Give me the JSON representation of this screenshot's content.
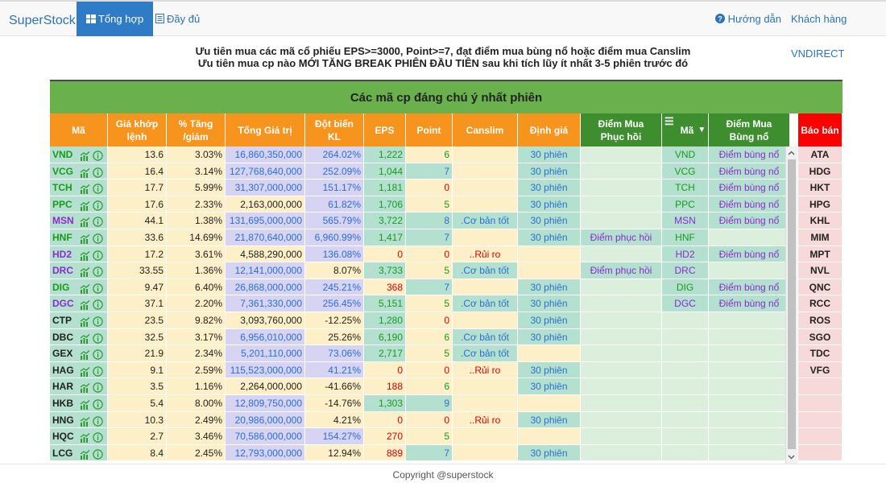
{
  "nav": {
    "brand": "SuperStock",
    "tab_summary": "Tổng hợp",
    "tab_full": "Đầy đủ",
    "help": "Hướng dẫn",
    "customer": "Khách hàng VNDIRECT"
  },
  "headline": {
    "line1": "Ưu tiên mua các mã cổ phiếu EPS>=3000, Point>=7, đạt điểm mua bùng nổ hoặc điểm mua Canslim",
    "line2": "Ưu tiên mua cp nào MỚI TĂNG BREAK PHIÊN ĐẦU TIÊN sau khi tích lũy ít nhất 3-5 phiên trước đó"
  },
  "board": {
    "title": "Các mã cp đáng chú ý nhất phiên",
    "headers": {
      "ma": "Mã",
      "gia_khop_1": "Giá khớp",
      "gia_khop_2": "lệnh",
      "tang_1": "% Tăng",
      "tang_2": "/giảm",
      "tong_gt": "Tổng Giá trị",
      "dot_bien_1": "Đột biến",
      "dot_bien_2": "KL",
      "eps": "EPS",
      "point": "Point",
      "canslim": "Canslim",
      "dinh_gia": "Định giá",
      "diem_mua_ph_1": "Điểm Mua",
      "diem_mua_ph_2": "Phục hồi",
      "ma2": "Mã",
      "menu_glyph": "☰",
      "sort_glyph": "▼",
      "bung_no_1": "Điểm Mua",
      "bung_no_2": "Bùng nổ",
      "bao_ban": "Báo bán"
    },
    "rows": [
      {
        "ma": "VND",
        "gia": "13.6",
        "tang": "3.03%",
        "tgt": "16,860,350,000",
        "dbkl": "264.02%",
        "eps": "1,222",
        "point": "6",
        "canslim": "",
        "dinhgia": "30 phiên",
        "ph": "",
        "ma2": "VND",
        "bungno": "Điểm bùng nổ",
        "baoban": "ATA"
      },
      {
        "ma": "VCG",
        "gia": "16.4",
        "tang": "3.14%",
        "tgt": "127,768,640,000",
        "dbkl": "252.09%",
        "eps": "1,044",
        "point": "7",
        "canslim": "",
        "dinhgia": "30 phiên",
        "ph": "",
        "ma2": "VCG",
        "bungno": "Điểm bùng nổ",
        "baoban": "HDG"
      },
      {
        "ma": "TCH",
        "gia": "17.7",
        "tang": "5.99%",
        "tgt": "31,307,000,000",
        "dbkl": "151.17%",
        "eps": "1,181",
        "point": "0",
        "canslim": "",
        "dinhgia": "30 phiên",
        "ph": "",
        "ma2": "TCH",
        "bungno": "Điểm bùng nổ",
        "baoban": "HKT"
      },
      {
        "ma": "PPC",
        "gia": "17.6",
        "tang": "2.33%",
        "tgt": "2,163,000,000",
        "dbkl": "61.82%",
        "eps": "1,706",
        "point": "5",
        "canslim": "",
        "dinhgia": "30 phiên",
        "ph": "",
        "ma2": "PPC",
        "bungno": "Điểm bùng nổ",
        "baoban": "HPG"
      },
      {
        "ma": "MSN",
        "gia": "44.1",
        "tang": "1.38%",
        "tgt": "131,695,000,000",
        "dbkl": "565.79%",
        "eps": "3,722",
        "point": "8",
        "canslim": ".Cơ bản tốt",
        "dinhgia": "30 phiên",
        "ph": "",
        "ma2": "MSN",
        "bungno": "Điểm bùng nổ",
        "baoban": "KHL"
      },
      {
        "ma": "HNF",
        "gia": "33.6",
        "tang": "14.69%",
        "tgt": "21,870,640,000",
        "dbkl": "6,960.99%",
        "eps": "1,417",
        "point": "7",
        "canslim": "",
        "dinhgia": "30 phiên",
        "ph": "Điểm phục hồi",
        "ma2": "HNF",
        "bungno": "",
        "baoban": "MIM"
      },
      {
        "ma": "HD2",
        "gia": "17.2",
        "tang": "3.61%",
        "tgt": "4,588,290,000",
        "dbkl": "136.08%",
        "eps": "0",
        "point": "0",
        "canslim": "..Rủi ro",
        "dinhgia": "",
        "ph": "",
        "ma2": "HD2",
        "bungno": "Điểm bùng nổ",
        "baoban": "MPT"
      },
      {
        "ma": "DRC",
        "gia": "33.55",
        "tang": "1.36%",
        "tgt": "12,141,000,000",
        "dbkl": "8.07%",
        "eps": "3,733",
        "point": "5",
        "canslim": ".Cơ bản tốt",
        "dinhgia": "",
        "ph": "Điểm phục hồi",
        "ma2": "DRC",
        "bungno": "",
        "baoban": "NVL"
      },
      {
        "ma": "DIG",
        "gia": "9.47",
        "tang": "6.40%",
        "tgt": "26,868,000,000",
        "dbkl": "245.21%",
        "eps": "368",
        "point": "7",
        "canslim": "",
        "dinhgia": "30 phiên",
        "ph": "",
        "ma2": "DIG",
        "bungno": "Điểm bùng nổ",
        "baoban": "QNC"
      },
      {
        "ma": "DGC",
        "gia": "37.1",
        "tang": "2.20%",
        "tgt": "7,361,330,000",
        "dbkl": "256.45%",
        "eps": "5,151",
        "point": "5",
        "canslim": ".Cơ bản tốt",
        "dinhgia": "30 phiên",
        "ph": "",
        "ma2": "DGC",
        "bungno": "Điểm bùng nổ",
        "baoban": "RCC"
      },
      {
        "ma": "CTP",
        "gia": "23.5",
        "tang": "9.82%",
        "tgt": "3,093,760,000",
        "dbkl": "-12.25%",
        "eps": "1,280",
        "point": "0",
        "canslim": "",
        "dinhgia": "30 phiên",
        "ph": "",
        "ma2": "",
        "bungno": "",
        "baoban": "ROS"
      },
      {
        "ma": "DBC",
        "gia": "32.5",
        "tang": "3.17%",
        "tgt": "6,956,010,000",
        "dbkl": "25.26%",
        "eps": "6,190",
        "point": "6",
        "canslim": ".Cơ bản tốt",
        "dinhgia": "30 phiên",
        "ph": "",
        "ma2": "",
        "bungno": "",
        "baoban": "SGO"
      },
      {
        "ma": "GEX",
        "gia": "21.9",
        "tang": "2.34%",
        "tgt": "5,201,110,000",
        "dbkl": "73.06%",
        "eps": "2,717",
        "point": "5",
        "canslim": ".Cơ bản tốt",
        "dinhgia": "",
        "ph": "",
        "ma2": "",
        "bungno": "",
        "baoban": "TDC"
      },
      {
        "ma": "HAG",
        "gia": "9.1",
        "tang": "2.59%",
        "tgt": "115,523,000,000",
        "dbkl": "41.21%",
        "eps": "0",
        "point": "0",
        "canslim": "..Rủi ro",
        "dinhgia": "30 phiên",
        "ph": "",
        "ma2": "",
        "bungno": "",
        "baoban": "VFG"
      },
      {
        "ma": "HAR",
        "gia": "3.5",
        "tang": "1.16%",
        "tgt": "2,264,000,000",
        "dbkl": "-41.66%",
        "eps": "188",
        "point": "6",
        "canslim": "",
        "dinhgia": "30 phiên",
        "ph": "",
        "ma2": "",
        "bungno": "",
        "baoban": ""
      },
      {
        "ma": "HKB",
        "gia": "5.4",
        "tang": "8.00%",
        "tgt": "12,809,750,000",
        "dbkl": "-14.76%",
        "eps": "1,303",
        "point": "9",
        "canslim": "",
        "dinhgia": "",
        "ph": "",
        "ma2": "",
        "bungno": "",
        "baoban": ""
      },
      {
        "ma": "HNG",
        "gia": "10.3",
        "tang": "2.49%",
        "tgt": "20,986,000,000",
        "dbkl": "4.21%",
        "eps": "0",
        "point": "0",
        "canslim": "..Rủi ro",
        "dinhgia": "30 phiên",
        "ph": "",
        "ma2": "",
        "bungno": "",
        "baoban": ""
      },
      {
        "ma": "HQC",
        "gia": "2.7",
        "tang": "3.46%",
        "tgt": "70,586,000,000",
        "dbkl": "154.27%",
        "eps": "270",
        "point": "5",
        "canslim": "",
        "dinhgia": "",
        "ph": "",
        "ma2": "",
        "bungno": "",
        "baoban": ""
      },
      {
        "ma": "LCG",
        "gia": "8.4",
        "tang": "2.45%",
        "tgt": "12,793,000,000",
        "dbkl": "12.94%",
        "eps": "889",
        "point": "7",
        "canslim": "",
        "dinhgia": "30 phiên",
        "ph": "",
        "ma2": "",
        "bungno": "",
        "baoban": ""
      }
    ],
    "symbol_colors": [
      "green",
      "green",
      "green",
      "green",
      "purple",
      "green",
      "purple",
      "purple",
      "green",
      "purple",
      "dark",
      "dark",
      "dark",
      "dark",
      "dark",
      "dark",
      "dark",
      "dark",
      "dark"
    ]
  },
  "footer": "Copyright @superstock"
}
